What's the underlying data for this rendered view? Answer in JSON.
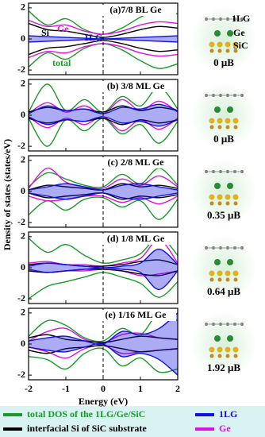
{
  "ylabel": "Density of states (states/eV)",
  "legend": [
    {
      "label": "total DOS of the 1LG/Ge/SiC",
      "color": "#1a9a2a"
    },
    {
      "label": "interfacial  Si of SiC substrate",
      "color": "#000000"
    },
    {
      "label": "1LG",
      "color": "#1010e0"
    },
    {
      "label": "Ge",
      "color": "#e010e0"
    }
  ],
  "chart_data": [
    {
      "type": "line",
      "title": "(a)7/8 BL Ge",
      "moment": "0 μB",
      "structure_labels": [
        "1LG",
        "Ge",
        "SiC"
      ],
      "annotations": [
        {
          "text": "Si",
          "color": "#000000"
        },
        {
          "text": "Ge",
          "color": "#e010e0"
        },
        {
          "text": "1LG",
          "color": "#1010e0"
        },
        {
          "text": "total",
          "color": "#1a9a2a"
        }
      ],
      "x": [
        -2,
        -1.5,
        -1,
        -0.5,
        0,
        0.5,
        1,
        1.5,
        2
      ],
      "xlim": [
        -2,
        2
      ],
      "xticks": [
        -2,
        -1,
        0,
        1,
        2
      ],
      "ylim": [
        -2.3,
        2.3
      ],
      "yticks": [
        -2,
        0,
        2
      ],
      "series": [
        {
          "color": "#1a9a2a",
          "values": [
            1.8,
            0.9,
            1.3,
            0.6,
            0.3,
            0.7,
            1.4,
            1.9,
            1.6
          ]
        },
        {
          "color": "#1a9a2a",
          "values": [
            -1.8,
            -0.9,
            -1.3,
            -0.6,
            -0.3,
            -0.7,
            -1.4,
            -1.9,
            -1.6
          ]
        },
        {
          "color": "#e010e0",
          "values": [
            1.2,
            0.8,
            0.9,
            0.5,
            0.3,
            0.5,
            0.9,
            1.1,
            1.0
          ]
        },
        {
          "color": "#e010e0",
          "values": [
            -1.2,
            -0.8,
            -0.9,
            -0.5,
            -0.3,
            -0.5,
            -0.9,
            -1.1,
            -1.0
          ]
        },
        {
          "color": "#000000",
          "values": [
            1.0,
            0.6,
            0.5,
            0.3,
            0.1,
            0.3,
            0.6,
            0.8,
            0.7
          ]
        },
        {
          "color": "#000000",
          "values": [
            -1.0,
            -0.6,
            -0.5,
            -0.3,
            -0.1,
            -0.3,
            -0.6,
            -0.8,
            -0.7
          ]
        },
        {
          "color": "#1010e0",
          "filled": true,
          "values": [
            0.2,
            0.15,
            0.1,
            0.05,
            0,
            0.05,
            0.1,
            0.15,
            0.2
          ]
        },
        {
          "color": "#1010e0",
          "filled": true,
          "values": [
            -0.2,
            -0.15,
            -0.1,
            -0.05,
            0,
            -0.05,
            -0.1,
            -0.15,
            -0.2
          ]
        }
      ]
    },
    {
      "type": "line",
      "title": "(b) 3/8 ML Ge",
      "moment": "0 μB",
      "x": [
        -2,
        -1.5,
        -1,
        -0.5,
        0,
        0.5,
        1,
        1.5,
        2
      ],
      "xlim": [
        -2,
        2
      ],
      "xticks": [
        -2,
        -1,
        0,
        1,
        2
      ],
      "ylim": [
        -2.3,
        2.3
      ],
      "yticks": [
        -2,
        0,
        2
      ],
      "series": [
        {
          "color": "#1a9a2a",
          "values": [
            0.2,
            2.0,
            0.3,
            1.0,
            0.2,
            1.2,
            0.6,
            1.8,
            0.4
          ]
        },
        {
          "color": "#1a9a2a",
          "values": [
            -0.2,
            -2.0,
            -0.3,
            -1.0,
            -0.2,
            -1.2,
            -0.6,
            -1.8,
            -0.4
          ]
        },
        {
          "color": "#e010e0",
          "values": [
            0.1,
            0.8,
            0.2,
            0.6,
            0.1,
            1.0,
            0.3,
            0.9,
            0.2
          ]
        },
        {
          "color": "#e010e0",
          "values": [
            -0.1,
            -0.8,
            -0.2,
            -0.6,
            -0.1,
            -1.0,
            -0.3,
            -0.9,
            -0.2
          ]
        },
        {
          "color": "#000000",
          "values": [
            0.2,
            0.5,
            0.3,
            0.4,
            0.2,
            0.6,
            0.3,
            0.5,
            0.3
          ]
        },
        {
          "color": "#000000",
          "values": [
            -0.2,
            -0.5,
            -0.3,
            -0.4,
            -0.2,
            -0.6,
            -0.3,
            -0.5,
            -0.3
          ]
        },
        {
          "color": "#1010e0",
          "filled": true,
          "values": [
            0.1,
            0.6,
            0.3,
            0.4,
            0.1,
            0.5,
            0.4,
            0.7,
            0.3
          ]
        },
        {
          "color": "#1010e0",
          "filled": true,
          "values": [
            -0.1,
            -0.6,
            -0.3,
            -0.4,
            -0.1,
            -0.5,
            -0.4,
            -0.7,
            -0.3
          ]
        }
      ]
    },
    {
      "type": "line",
      "title": "(c) 2/8 ML Ge",
      "moment": "0.35 μB",
      "x": [
        -2,
        -1.5,
        -1,
        -0.5,
        0,
        0.5,
        1,
        1.5,
        2
      ],
      "xlim": [
        -2,
        2
      ],
      "xticks": [
        -2,
        -1,
        0,
        1,
        2
      ],
      "ylim": [
        -2.3,
        2.3
      ],
      "yticks": [
        -2,
        0,
        2
      ],
      "series": [
        {
          "color": "#1a9a2a",
          "values": [
            0.3,
            1.2,
            0.8,
            0.4,
            0.3,
            1.1,
            0.5,
            1.5,
            0.4
          ]
        },
        {
          "color": "#1a9a2a",
          "values": [
            -1.5,
            -0.6,
            -1.2,
            -0.5,
            -0.4,
            -1.0,
            -0.6,
            -1.8,
            -0.5
          ]
        },
        {
          "color": "#e010e0",
          "values": [
            0.2,
            1.5,
            0.6,
            0.3,
            0.2,
            0.8,
            0.4,
            1.0,
            0.3
          ]
        },
        {
          "color": "#e010e0",
          "values": [
            -0.3,
            -0.6,
            -0.5,
            -0.3,
            -0.3,
            -0.7,
            -0.4,
            -0.8,
            -0.3
          ]
        },
        {
          "color": "#000000",
          "values": [
            0.1,
            0.4,
            0.3,
            0.2,
            0.1,
            0.5,
            0.3,
            0.4,
            0.2
          ]
        },
        {
          "color": "#000000",
          "values": [
            -0.1,
            -0.4,
            -0.3,
            -0.2,
            -0.1,
            -0.5,
            -0.3,
            -0.4,
            -0.2
          ]
        },
        {
          "color": "#1010e0",
          "filled": true,
          "values": [
            0.1,
            0.3,
            0.5,
            0.3,
            0.1,
            0.4,
            0.5,
            0.3,
            0.1
          ]
        },
        {
          "color": "#1010e0",
          "filled": true,
          "values": [
            -0.1,
            -0.3,
            -0.5,
            -0.3,
            -0.1,
            -0.4,
            -0.5,
            -0.3,
            -0.1
          ]
        }
      ]
    },
    {
      "type": "line",
      "title": "(d) 1/8 ML Ge",
      "moment": "0.64 μB",
      "x": [
        -2,
        -1.5,
        -1,
        -0.5,
        0,
        0.5,
        1,
        1.5,
        2
      ],
      "xlim": [
        -2,
        2
      ],
      "xticks": [
        -2,
        -1,
        0,
        1,
        2
      ],
      "ylim": [
        -2.3,
        2.3
      ],
      "yticks": [
        -2,
        0,
        2
      ],
      "series": [
        {
          "color": "#1a9a2a",
          "values": [
            1.9,
            1.0,
            1.5,
            0.8,
            0.3,
            0.5,
            0.9,
            2.0,
            0.8
          ]
        },
        {
          "color": "#1a9a2a",
          "values": [
            -2.0,
            -1.2,
            -0.9,
            -0.6,
            -0.3,
            -0.6,
            -1.0,
            -1.9,
            -0.9
          ]
        },
        {
          "color": "#e010e0",
          "values": [
            0.3,
            0.4,
            0.2,
            0.2,
            0.1,
            0.3,
            0.6,
            1.8,
            0.3
          ]
        },
        {
          "color": "#e010e0",
          "values": [
            -0.2,
            -0.3,
            -0.2,
            -0.2,
            -0.1,
            -0.2,
            -0.5,
            -0.4,
            -0.2
          ]
        },
        {
          "color": "#000000",
          "values": [
            0.2,
            0.3,
            0.2,
            0.1,
            0.1,
            0.2,
            0.4,
            0.5,
            0.2
          ]
        },
        {
          "color": "#000000",
          "values": [
            -0.2,
            -0.3,
            -0.2,
            -0.1,
            -0.1,
            -0.2,
            -0.4,
            -0.5,
            -0.2
          ]
        },
        {
          "color": "#1010e0",
          "filled": true,
          "values": [
            0.1,
            0.3,
            0.2,
            0.1,
            0,
            0.1,
            0.3,
            1.2,
            0.2
          ]
        },
        {
          "color": "#1010e0",
          "filled": true,
          "values": [
            -0.1,
            -0.3,
            -0.2,
            -0.1,
            0,
            -0.1,
            -0.3,
            -1.4,
            -0.2
          ]
        }
      ]
    },
    {
      "type": "line",
      "title": "(e) 1/16 ML Ge",
      "moment": "1.92 μB",
      "xlabel": "Energy (eV)",
      "x": [
        -2,
        -1.5,
        -1,
        -0.5,
        0,
        0.5,
        1,
        1.5,
        2
      ],
      "xlim": [
        -2,
        2
      ],
      "xticks": [
        -2,
        -1,
        0,
        1,
        2
      ],
      "ylim": [
        -2.3,
        2.3
      ],
      "yticks": [
        -2,
        0,
        2
      ],
      "series": [
        {
          "color": "#1a9a2a",
          "values": [
            0.5,
            1.5,
            1.2,
            0.4,
            0.2,
            1.0,
            0.6,
            2.0,
            1.5
          ]
        },
        {
          "color": "#1a9a2a",
          "values": [
            -0.8,
            -1.0,
            -1.6,
            -0.6,
            -0.3,
            -1.4,
            -0.9,
            -1.8,
            -1.6
          ]
        },
        {
          "color": "#e010e0",
          "values": [
            0.2,
            0.8,
            1.0,
            0.3,
            0.1,
            0.6,
            0.7,
            0.4,
            0.3
          ]
        },
        {
          "color": "#e010e0",
          "values": [
            -0.2,
            -0.5,
            -0.9,
            -0.3,
            -0.1,
            -0.6,
            -0.5,
            -0.4,
            -0.3
          ]
        },
        {
          "color": "#000000",
          "values": [
            0.4,
            0.6,
            0.3,
            0.2,
            0.1,
            0.3,
            0.5,
            0.4,
            0.3
          ]
        },
        {
          "color": "#000000",
          "values": [
            -0.4,
            -0.6,
            -0.3,
            -0.2,
            -0.1,
            -0.3,
            -0.5,
            -0.4,
            -0.3
          ]
        },
        {
          "color": "#1010e0",
          "filled": true,
          "values": [
            0.2,
            0.4,
            0.5,
            0.2,
            0,
            0.8,
            0.6,
            1.0,
            2.0
          ]
        },
        {
          "color": "#1010e0",
          "filled": true,
          "values": [
            -0.2,
            -0.4,
            -0.5,
            -0.2,
            0,
            -0.8,
            -0.6,
            -1.0,
            -2.0
          ]
        }
      ]
    }
  ]
}
